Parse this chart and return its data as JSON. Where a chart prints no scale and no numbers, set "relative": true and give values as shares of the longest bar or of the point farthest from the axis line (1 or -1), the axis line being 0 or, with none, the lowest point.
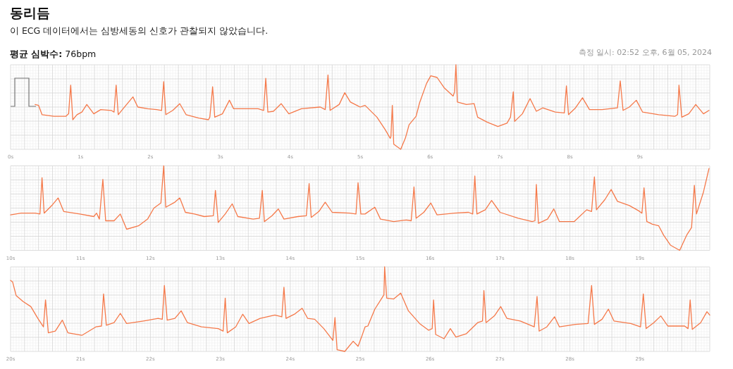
{
  "chart_data": [
    {
      "type": "line",
      "title": "동리듬",
      "subtitle": "이 ECG 데이터에서는 심방세동의 신호가 관찰되지 않았습니다.",
      "annotations": [
        "**평균 심박수:** 76bpm",
        "측정 일시: 02:52 오후, 6월 05, 2024"
      ],
      "relative": true,
      "grid": true,
      "tick_labels": "x",
      "color": "#f5794a",
      "xlim": [
        0,
        10
      ],
      "xticks": [
        {
          "value": 0,
          "label": "0s"
        },
        {
          "value": 1,
          "label": "1s"
        },
        {
          "value": 2,
          "label": "2s"
        },
        {
          "value": 3,
          "label": "3s"
        },
        {
          "value": 4,
          "label": "4s"
        },
        {
          "value": 5,
          "label": "5s"
        },
        {
          "value": 6,
          "label": "6s"
        },
        {
          "value": 7,
          "label": "7s"
        },
        {
          "value": 8,
          "label": "8s"
        },
        {
          "value": 9,
          "label": "9s"
        }
      ],
      "x": [
        0.35,
        0.4,
        0.45,
        0.62,
        0.79,
        0.83,
        0.86,
        0.89,
        0.95,
        1.02,
        1.09,
        1.19,
        1.29,
        1.44,
        1.48,
        1.51,
        1.54,
        1.62,
        1.75,
        1.82,
        1.96,
        2.09,
        2.16,
        2.19,
        2.22,
        2.32,
        2.42,
        2.51,
        2.69,
        2.83,
        2.85,
        2.89,
        2.92,
        3.03,
        3.13,
        3.19,
        3.36,
        3.54,
        3.62,
        3.65,
        3.68,
        3.76,
        3.87,
        3.98,
        4.16,
        4.43,
        4.5,
        4.54,
        4.57,
        4.7,
        4.78,
        4.86,
        5.0,
        5.07,
        5.24,
        5.36,
        5.43,
        5.44,
        5.46,
        5.48,
        5.58,
        5.65,
        5.7,
        5.8,
        5.85,
        5.95,
        6.01,
        6.1,
        6.2,
        6.33,
        6.35,
        6.37,
        6.39,
        6.52,
        6.63,
        6.68,
        6.82,
        6.97,
        7.1,
        7.15,
        7.19,
        7.21,
        7.32,
        7.43,
        7.52,
        7.61,
        7.79,
        7.92,
        7.95,
        7.98,
        8.08,
        8.18,
        8.28,
        8.46,
        8.68,
        8.72,
        8.76,
        8.85,
        8.95,
        9.04,
        9.27,
        9.5,
        9.54,
        9.56,
        9.6,
        9.7,
        9.8,
        9.91,
        9.99
      ],
      "values": [
        0.53,
        0.52,
        0.41,
        0.39,
        0.39,
        0.42,
        0.76,
        0.35,
        0.41,
        0.44,
        0.53,
        0.42,
        0.47,
        0.46,
        0.44,
        0.76,
        0.41,
        0.49,
        0.62,
        0.5,
        0.48,
        0.47,
        0.46,
        0.8,
        0.41,
        0.46,
        0.54,
        0.41,
        0.37,
        0.35,
        0.38,
        0.74,
        0.38,
        0.42,
        0.58,
        0.48,
        0.48,
        0.48,
        0.46,
        0.84,
        0.44,
        0.45,
        0.54,
        0.42,
        0.48,
        0.5,
        0.47,
        0.88,
        0.46,
        0.53,
        0.67,
        0.56,
        0.5,
        0.52,
        0.38,
        0.23,
        0.13,
        0.15,
        0.52,
        0.06,
        0.0,
        0.14,
        0.29,
        0.39,
        0.55,
        0.78,
        0.87,
        0.85,
        0.73,
        0.63,
        0.68,
        1.0,
        0.56,
        0.53,
        0.54,
        0.38,
        0.32,
        0.27,
        0.31,
        0.38,
        0.68,
        0.33,
        0.42,
        0.6,
        0.45,
        0.49,
        0.44,
        0.43,
        0.75,
        0.41,
        0.49,
        0.61,
        0.47,
        0.47,
        0.49,
        0.81,
        0.46,
        0.5,
        0.58,
        0.44,
        0.41,
        0.39,
        0.41,
        0.76,
        0.38,
        0.42,
        0.53,
        0.42,
        0.46
      ]
    },
    {
      "type": "line",
      "relative": true,
      "grid": true,
      "tick_labels": "x",
      "color": "#f5794a",
      "xlim": [
        10,
        20
      ],
      "xticks": [
        {
          "value": 10,
          "label": "10s"
        },
        {
          "value": 11,
          "label": "11s"
        },
        {
          "value": 12,
          "label": "12s"
        },
        {
          "value": 13,
          "label": "13s"
        },
        {
          "value": 14,
          "label": "14s"
        },
        {
          "value": 15,
          "label": "15s"
        },
        {
          "value": 16,
          "label": "16s"
        },
        {
          "value": 17,
          "label": "17s"
        },
        {
          "value": 18,
          "label": "18s"
        },
        {
          "value": 19,
          "label": "19s"
        }
      ],
      "x": [
        10.0,
        10.15,
        10.35,
        10.42,
        10.45,
        10.48,
        10.6,
        10.68,
        10.76,
        10.99,
        11.19,
        11.23,
        11.27,
        11.32,
        11.36,
        11.48,
        11.57,
        11.66,
        11.83,
        11.96,
        12.05,
        12.15,
        12.19,
        12.22,
        12.35,
        12.42,
        12.5,
        12.63,
        12.77,
        12.9,
        12.93,
        12.97,
        13.07,
        13.17,
        13.25,
        13.47,
        13.56,
        13.6,
        13.63,
        13.74,
        13.83,
        13.91,
        14.11,
        14.23,
        14.27,
        14.3,
        14.41,
        14.5,
        14.6,
        14.85,
        14.94,
        14.97,
        15.01,
        15.07,
        15.21,
        15.29,
        15.48,
        15.66,
        15.73,
        15.77,
        15.8,
        15.91,
        16.01,
        16.1,
        16.35,
        16.55,
        16.61,
        16.64,
        16.67,
        16.79,
        16.88,
        17.0,
        17.26,
        17.46,
        17.5,
        17.52,
        17.55,
        17.68,
        17.77,
        17.85,
        18.06,
        18.24,
        18.31,
        18.35,
        18.38,
        18.5,
        18.59,
        18.68,
        18.85,
        18.98,
        19.03,
        19.06,
        19.1,
        19.18,
        19.27,
        19.34,
        19.44,
        19.57,
        19.67,
        19.74,
        19.78,
        19.81,
        19.91,
        19.99
      ],
      "values": [
        0.42,
        0.44,
        0.44,
        0.43,
        0.86,
        0.44,
        0.54,
        0.62,
        0.46,
        0.43,
        0.4,
        0.44,
        0.37,
        0.84,
        0.35,
        0.35,
        0.43,
        0.25,
        0.29,
        0.37,
        0.5,
        0.56,
        1.0,
        0.51,
        0.57,
        0.62,
        0.45,
        0.43,
        0.4,
        0.41,
        0.71,
        0.33,
        0.43,
        0.55,
        0.4,
        0.37,
        0.38,
        0.71,
        0.34,
        0.41,
        0.49,
        0.37,
        0.4,
        0.41,
        0.79,
        0.39,
        0.46,
        0.57,
        0.45,
        0.44,
        0.43,
        0.8,
        0.43,
        0.43,
        0.51,
        0.37,
        0.34,
        0.36,
        0.35,
        0.75,
        0.38,
        0.45,
        0.56,
        0.42,
        0.44,
        0.45,
        0.43,
        0.88,
        0.43,
        0.48,
        0.59,
        0.45,
        0.38,
        0.34,
        0.35,
        0.78,
        0.32,
        0.37,
        0.49,
        0.34,
        0.34,
        0.48,
        0.46,
        0.87,
        0.48,
        0.6,
        0.72,
        0.58,
        0.53,
        0.47,
        0.44,
        0.74,
        0.34,
        0.31,
        0.29,
        0.18,
        0.06,
        0.0,
        0.18,
        0.27,
        0.77,
        0.43,
        0.69,
        0.97
      ]
    },
    {
      "type": "line",
      "relative": true,
      "grid": true,
      "tick_labels": "x",
      "color": "#f5794a",
      "xlim": [
        20,
        30
      ],
      "xticks": [
        {
          "value": 20,
          "label": "20s"
        },
        {
          "value": 21,
          "label": "21s"
        },
        {
          "value": 22,
          "label": "22s"
        },
        {
          "value": 23,
          "label": "23s"
        },
        {
          "value": 24,
          "label": "24s"
        },
        {
          "value": 25,
          "label": "25s"
        },
        {
          "value": 26,
          "label": "26s"
        },
        {
          "value": 27,
          "label": "27s"
        },
        {
          "value": 28,
          "label": "28s"
        },
        {
          "value": 29,
          "label": "29s"
        }
      ],
      "x": [
        20.0,
        20.03,
        20.08,
        20.18,
        20.29,
        20.39,
        20.47,
        20.5,
        20.54,
        20.64,
        20.74,
        20.82,
        21.02,
        21.22,
        21.3,
        21.33,
        21.37,
        21.48,
        21.57,
        21.66,
        21.9,
        22.11,
        22.17,
        22.2,
        22.24,
        22.35,
        22.44,
        22.53,
        22.73,
        22.97,
        23.04,
        23.07,
        23.1,
        23.22,
        23.32,
        23.41,
        23.57,
        23.78,
        23.88,
        23.91,
        23.94,
        24.06,
        24.17,
        24.25,
        24.35,
        24.48,
        24.61,
        24.64,
        24.67,
        24.78,
        24.9,
        24.97,
        25.02,
        25.07,
        25.11,
        25.21,
        25.31,
        25.34,
        25.35,
        25.38,
        25.48,
        25.58,
        25.69,
        25.85,
        25.98,
        26.03,
        26.05,
        26.08,
        26.2,
        26.29,
        26.37,
        26.52,
        26.68,
        26.75,
        26.77,
        26.8,
        26.92,
        27.01,
        27.1,
        27.29,
        27.49,
        27.53,
        27.56,
        27.67,
        27.78,
        27.85,
        28.08,
        28.26,
        28.31,
        28.35,
        28.46,
        28.55,
        28.63,
        28.87,
        29.01,
        29.05,
        29.09,
        29.2,
        29.3,
        29.4,
        29.64,
        29.69,
        29.72,
        29.75,
        29.87,
        29.96,
        30.0
      ],
      "values": [
        0.84,
        0.82,
        0.66,
        0.59,
        0.53,
        0.39,
        0.29,
        0.61,
        0.22,
        0.24,
        0.37,
        0.22,
        0.19,
        0.29,
        0.3,
        0.68,
        0.31,
        0.34,
        0.45,
        0.33,
        0.36,
        0.39,
        0.38,
        0.78,
        0.37,
        0.39,
        0.48,
        0.34,
        0.29,
        0.27,
        0.24,
        0.63,
        0.22,
        0.29,
        0.44,
        0.33,
        0.39,
        0.43,
        0.41,
        0.76,
        0.39,
        0.44,
        0.51,
        0.39,
        0.38,
        0.27,
        0.13,
        0.4,
        0.02,
        0.0,
        0.12,
        0.06,
        0.17,
        0.29,
        0.3,
        0.5,
        0.63,
        0.67,
        1.0,
        0.63,
        0.62,
        0.69,
        0.48,
        0.33,
        0.25,
        0.27,
        0.61,
        0.2,
        0.15,
        0.27,
        0.17,
        0.21,
        0.34,
        0.36,
        0.72,
        0.34,
        0.42,
        0.53,
        0.39,
        0.36,
        0.29,
        0.65,
        0.24,
        0.29,
        0.41,
        0.29,
        0.32,
        0.33,
        0.78,
        0.32,
        0.38,
        0.5,
        0.36,
        0.33,
        0.29,
        0.68,
        0.27,
        0.34,
        0.42,
        0.3,
        0.3,
        0.27,
        0.61,
        0.26,
        0.34,
        0.47,
        0.43
      ]
    }
  ]
}
